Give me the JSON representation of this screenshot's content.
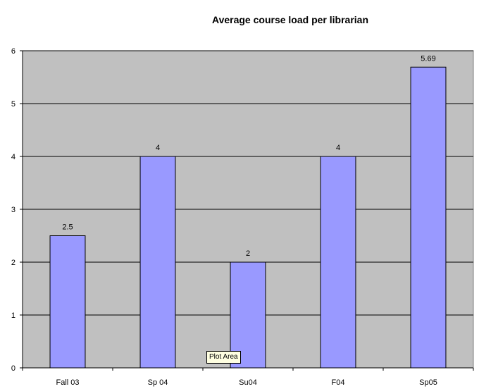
{
  "chart_data": {
    "type": "bar",
    "title": "Average course load per librarian",
    "categories": [
      "Fall 03",
      "Sp 04",
      "Su04",
      "F04",
      "Sp05"
    ],
    "values": [
      2.5,
      4,
      2,
      4,
      5.69
    ],
    "data_labels": [
      "2.5",
      "4",
      "2",
      "4",
      "5.69"
    ],
    "xlabel": "",
    "ylabel": "",
    "ylim": [
      0,
      6
    ],
    "yticks": [
      0,
      1,
      2,
      3,
      4,
      5,
      6
    ],
    "grid": true,
    "legend": "none",
    "colors": {
      "bar_fill": "#9999ff",
      "plot_background": "#c0c0c0",
      "gridline": "#000000"
    }
  },
  "tooltip": {
    "text": "Plot Area"
  }
}
